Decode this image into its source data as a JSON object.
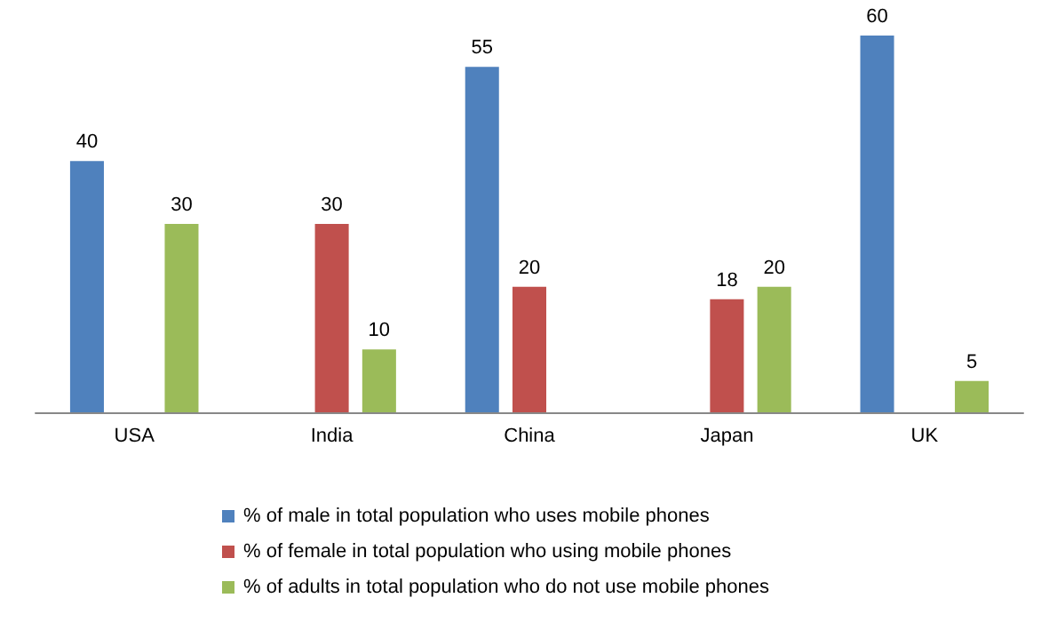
{
  "chart_data": {
    "type": "bar",
    "categories": [
      "USA",
      "India",
      "China",
      "Japan",
      "UK"
    ],
    "series": [
      {
        "name": "% of male in total population who uses mobile phones",
        "color": "#4f81bd",
        "values": [
          40,
          null,
          55,
          null,
          60
        ]
      },
      {
        "name": "% of female in total population who using mobile phones",
        "color": "#c0504d",
        "values": [
          null,
          30,
          20,
          18,
          null
        ]
      },
      {
        "name": "% of adults in total population who do not use mobile phones",
        "color": "#9bbb59",
        "values": [
          30,
          10,
          null,
          20,
          5
        ]
      }
    ],
    "data_labels": true,
    "legend": "bottom"
  }
}
